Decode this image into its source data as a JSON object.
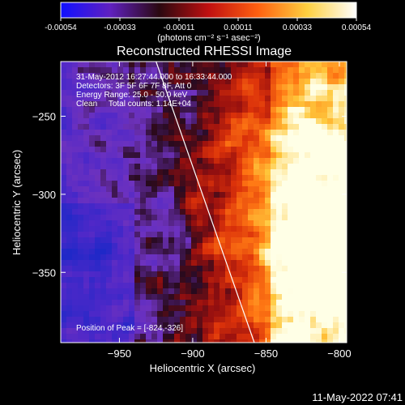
{
  "colorbar": {
    "tick_labels": [
      "-0.00054",
      "-0.00033",
      "-0.00011",
      "0.00011",
      "0.00033",
      "0.00054"
    ],
    "units_label": "(photons cm⁻² s⁻¹ asec⁻²)",
    "colors": [
      "#1010ff",
      "#6020c0",
      "#2a0810",
      "#c01010",
      "#ff6010",
      "#ffd040",
      "#ffffff"
    ]
  },
  "chart_data": {
    "type": "heatmap",
    "title": "Reconstructed RHESSI Image",
    "xlabel": "Heliocentric X (arcsec)",
    "ylabel": "Heliocentric Y (arcsec)",
    "xlim": [
      -990,
      -795
    ],
    "ylim": [
      -395,
      -215
    ],
    "xticks": [
      -950,
      -900,
      -850,
      -800
    ],
    "xtick_labels": [
      "−950",
      "−900",
      "−850",
      "−800"
    ],
    "yticks": [
      -250,
      -300,
      -350
    ],
    "ytick_labels": [
      "−250",
      "−300",
      "−350"
    ],
    "limb_line": [
      [
        -925,
        -215
      ],
      [
        -858,
        -395
      ]
    ],
    "peak": [
      -824,
      -326
    ],
    "annotations": [
      "31-May-2012 16:27:44.000 to 16:33:44.000",
      "Detectors: 3F 5F 6F 7F 8F, Att 0",
      "Energy Range: 25.0 - 50.0 keV",
      "Clean     Total counts: 1.14E+04"
    ],
    "peak_label": "Position of Peak = [-824,-326]"
  },
  "footer": {
    "timestamp": "11-May-2022 07:41"
  }
}
